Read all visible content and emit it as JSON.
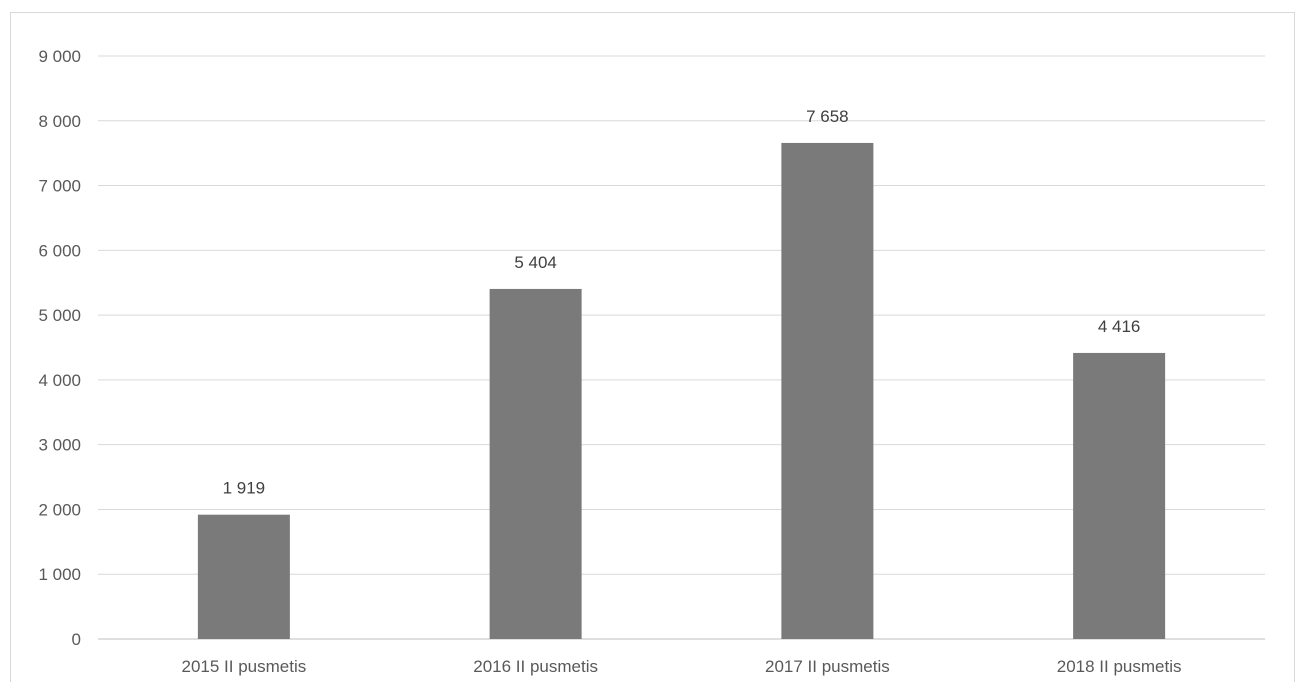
{
  "chart_data": {
    "type": "bar",
    "categories": [
      "2015 II pusmetis",
      "2016 II pusmetis",
      "2017 II pusmetis",
      "2018 II pusmetis"
    ],
    "values": [
      1919,
      5404,
      7658,
      4416
    ],
    "value_labels": [
      "1 919",
      "5 404",
      "7 658",
      "4 416"
    ],
    "ylim": [
      0,
      9000
    ],
    "yticks": [
      0,
      1000,
      2000,
      3000,
      4000,
      5000,
      6000,
      7000,
      8000,
      9000
    ],
    "ytick_labels": [
      "0",
      "1 000",
      "2 000",
      "3 000",
      "4 000",
      "5 000",
      "6 000",
      "7 000",
      "8 000",
      "9 000"
    ],
    "grid": true,
    "legend": "none",
    "bar_color": "#7a7a7a",
    "grid_color": "#d9d9d9"
  }
}
